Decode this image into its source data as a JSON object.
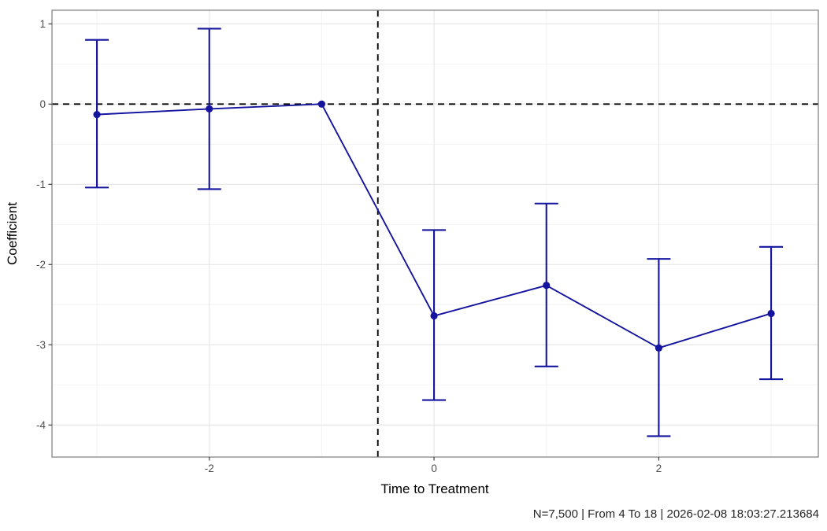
{
  "chart_data": {
    "type": "line",
    "subtype": "event-study-coefficient-plot-with-error-bars",
    "title": "",
    "xlabel": "Time to Treatment",
    "ylabel": "Coefficient",
    "caption": "N=7,500 | From 4 To 18 | 2026-02-08 18:03:27.213684",
    "x": [
      -3,
      -2,
      -1,
      0,
      1,
      2,
      3
    ],
    "series": [
      {
        "name": "coefficient",
        "estimates": [
          -0.13,
          -0.06,
          0,
          -2.64,
          -2.26,
          -3.04,
          -2.61
        ],
        "ci_low": [
          -1.04,
          -1.06,
          null,
          -3.69,
          -3.27,
          -4.14,
          -3.43
        ],
        "ci_high": [
          0.8,
          0.94,
          null,
          -1.57,
          -1.24,
          -1.93,
          -1.78
        ]
      }
    ],
    "reference_x": -1,
    "hline_y": 0,
    "vline_x": -0.5,
    "xlim": [
      -3.4,
      3.42
    ],
    "ylim": [
      -4.4,
      1.17
    ],
    "x_ticks": [
      -2,
      0,
      2
    ],
    "x_tick_labels": [
      "-2",
      "0",
      "2"
    ],
    "x_minor_gridlines": [
      -3,
      -1,
      1,
      3
    ],
    "y_ticks": [
      1,
      0,
      -1,
      -2,
      -3,
      -4
    ],
    "y_tick_labels": [
      "1",
      "0",
      "-1",
      "-2",
      "-3",
      "-4"
    ],
    "y_minor_gridlines": [
      0.5,
      -0.5,
      -1.5,
      -2.5,
      -3.5
    ],
    "grid": true,
    "legend": false,
    "colors": {
      "series": "#14149e",
      "grid_major": "#e4e4e4",
      "grid_minor": "#f2f2f2",
      "panel_border": "#858585",
      "dashed_line": "#000000",
      "tick_mark": "#333333",
      "tick_label": "#4d4d4d",
      "axis_title": "#000000",
      "caption": "#262626",
      "background": "#ffffff"
    }
  }
}
